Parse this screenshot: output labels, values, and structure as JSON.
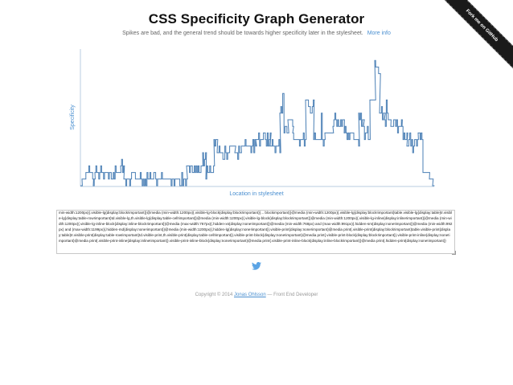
{
  "header": {
    "title": "CSS Specificity Graph Generator",
    "subtitle": "Spikes are bad, and the general trend should be towards higher specificity later in the stylesheet.",
    "more_info": "More info"
  },
  "ribbon": {
    "label": "Fork me on GitHub"
  },
  "chart_data": {
    "type": "line",
    "xlabel": "Location in stylesheet",
    "ylabel": "Specificity",
    "color": "#4a7fb5"
  },
  "css_input": {
    "value": "min-width:1200px){.visible-lg{display:block!important}}@media (min-width:1200px){.visible-lg-block{display:block!important}}... blockimportant}}@media (min-width:1200px){.visible-lg{display:block!important}table.visible-lg{display:table}tr.visible-lg{display:table-row!important}td.visible-lg,th.visible-lg{display:table-cell!important}}@media (min-width:1200px){.visible-lg-block{display:block!important}}@media (min-width:1200px){.visible-lg-inline{display:inline!important}}@media (min-width:1200px){.visible-lg-inline-block{display:inline-block!important}}@media (max-width:767px){.hidden-xs{display:none!important}}@media (min-width:768px) and (max-width:991px){.hidden-sm{display:none!important}}@media (min-width:992px) and (max-width:1199px){.hidden-md{display:none!important}}@media (min-width:1200px){.hidden-lg{display:none!important}}.visible-print{display:none!important}@media print{.visible-print{display:block!important}table.visible-print{display:table}tr.visible-print{display:table-row!important}td.visible-print,th.visible-print{display:table-cell!important}}.visible-print-block{display:none!important}@media print{.visible-print-block{display:block!important}}.visible-print-inline{display:none!important}@media print{.visible-print-inline{display:inline!important}}.visible-print-inline-block{display:none!important}@media print{.visible-print-inline-block{display:inline-block!important}}@media print{.hidden-print{display:none!important}}"
  },
  "footer": {
    "copyright": "Copyright © 2014",
    "author": "Jonas Ohlsson",
    "separator": "—",
    "role": "Front End Developer"
  },
  "icons": {
    "twitter": "twitter-bird-icon"
  }
}
